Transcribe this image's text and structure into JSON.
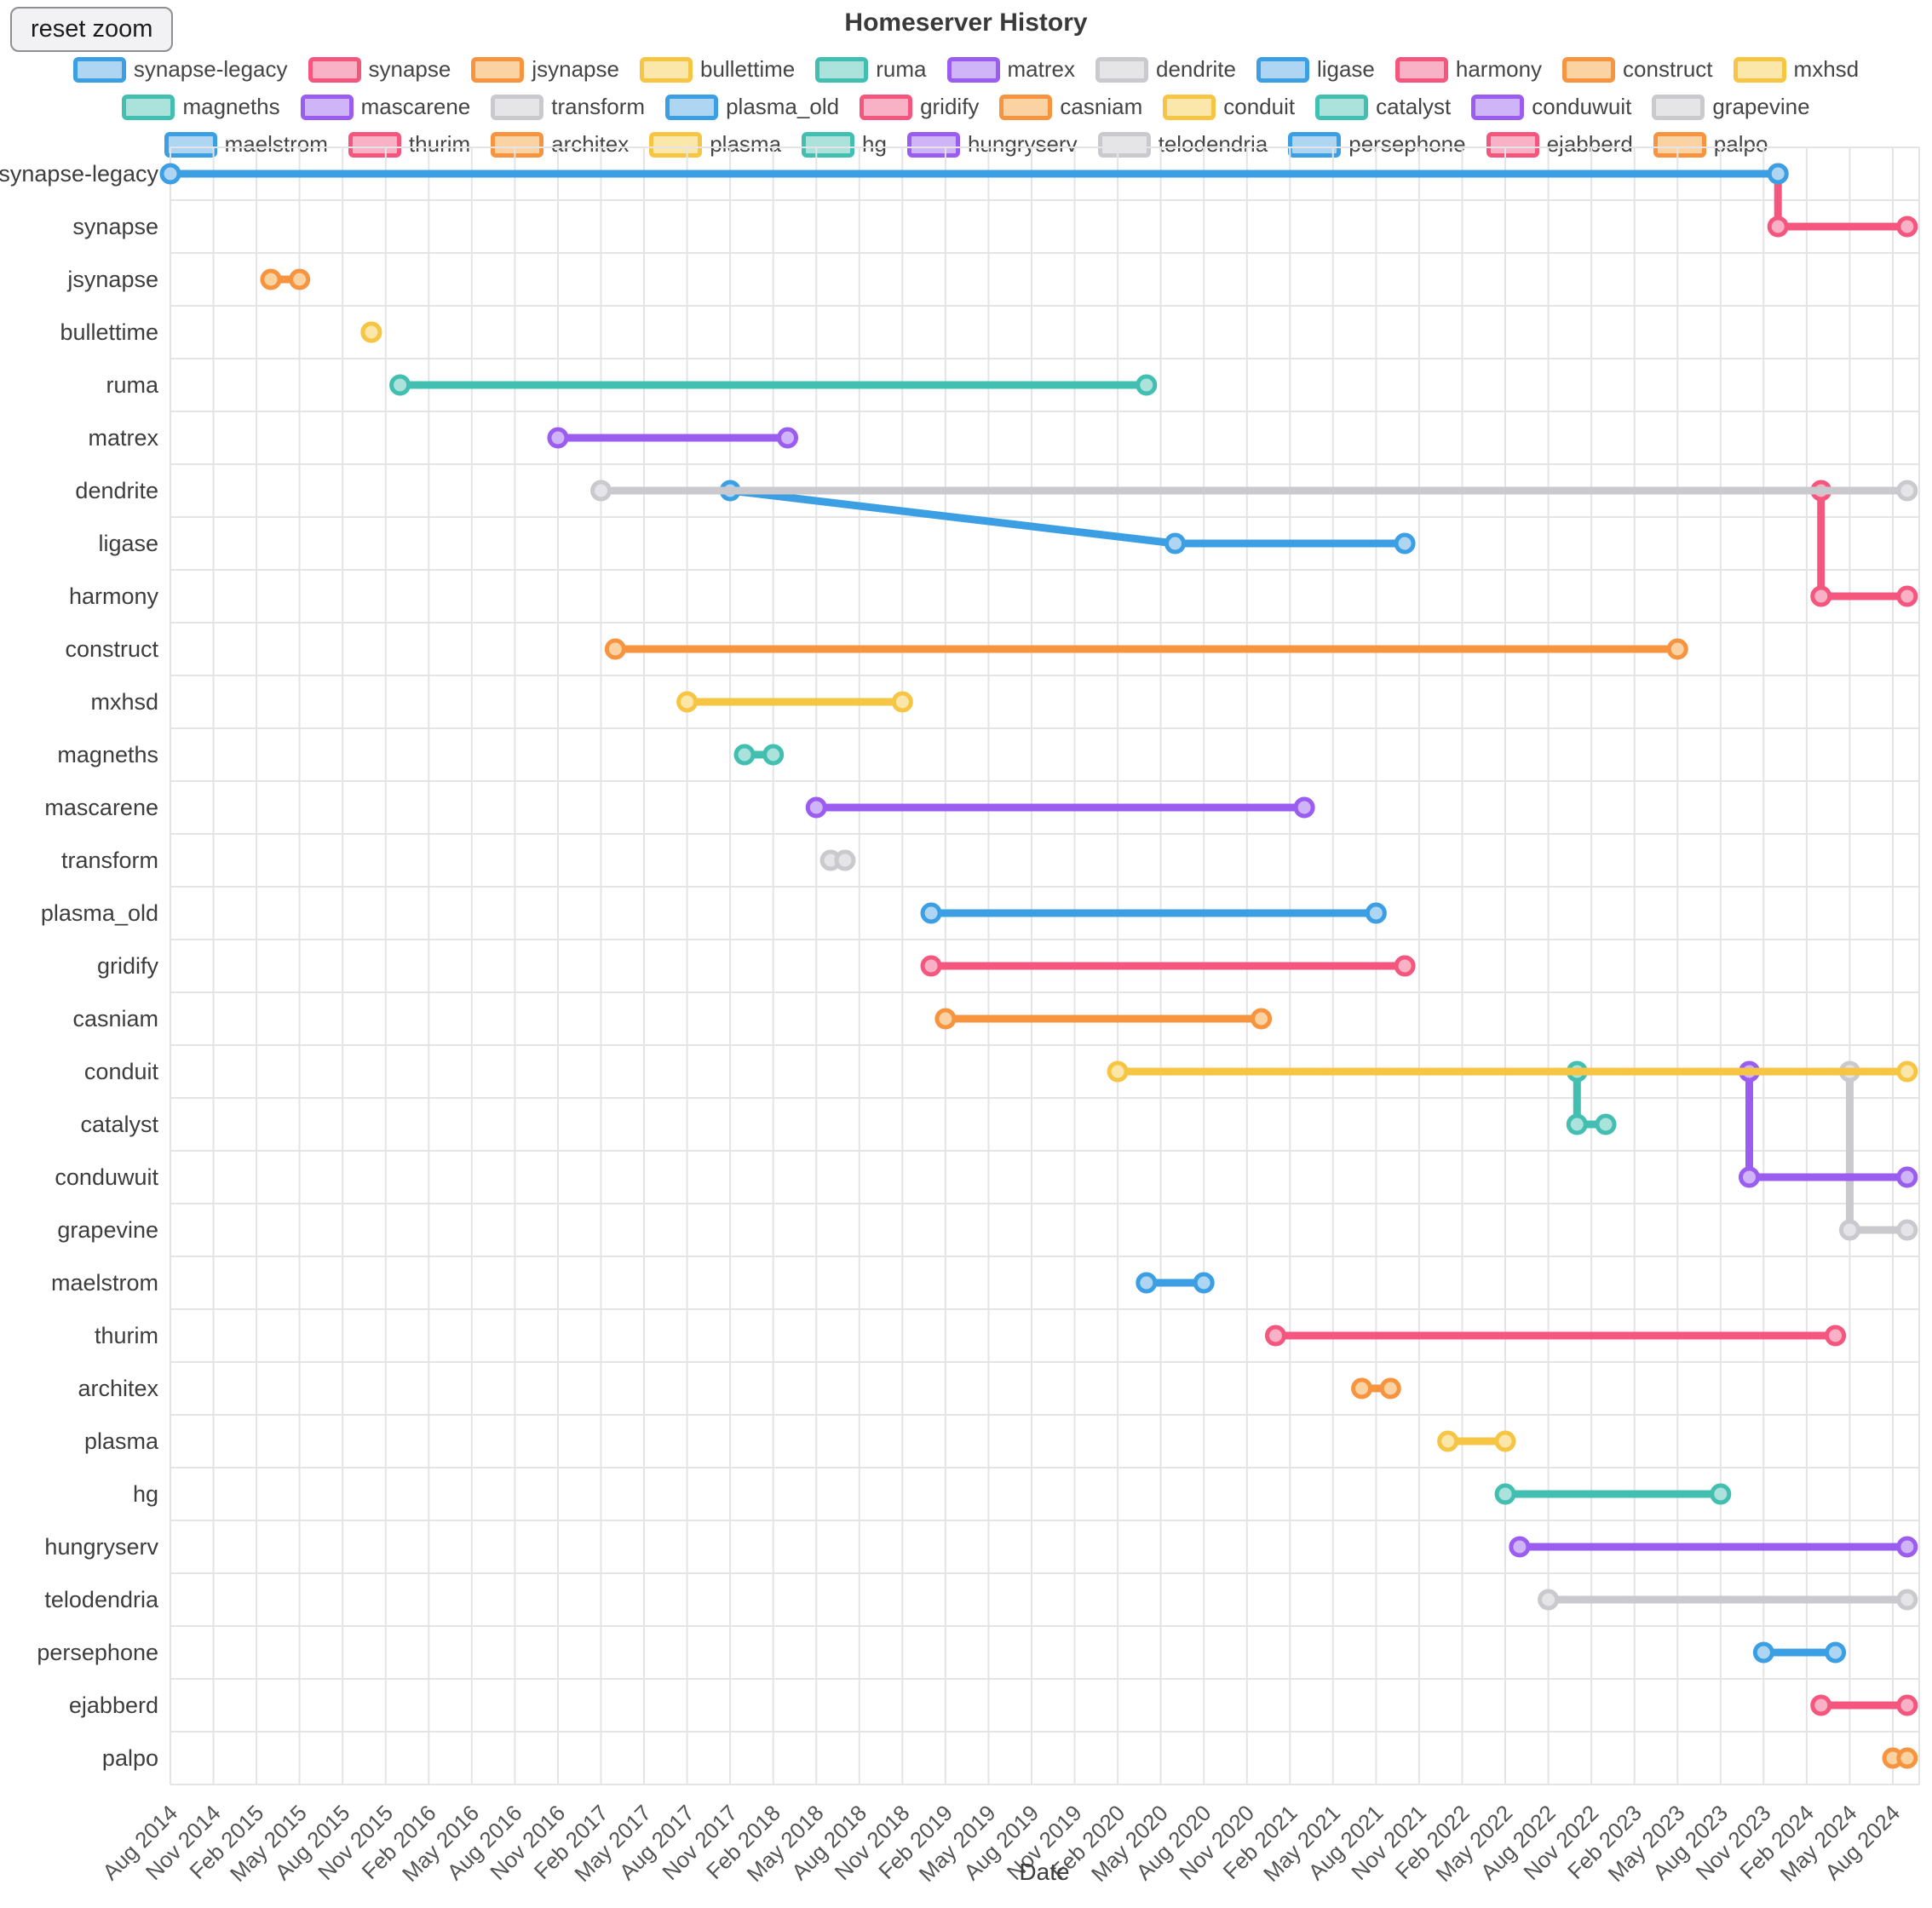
{
  "header": {
    "title": "Homeserver History",
    "reset_button_label": "reset zoom"
  },
  "chart_data": {
    "type": "gantt-timeline",
    "title": "Homeserver History",
    "xlabel": "Date",
    "x_axis": {
      "start": "2014-08",
      "end_tick": "2024-08",
      "tick_interval_months": 3,
      "present_end": "2024-09"
    },
    "x_ticks": [
      "Aug 2014",
      "Nov 2014",
      "Feb 2015",
      "May 2015",
      "Aug 2015",
      "Nov 2015",
      "Feb 2016",
      "May 2016",
      "Aug 2016",
      "Nov 2016",
      "Feb 2017",
      "May 2017",
      "Aug 2017",
      "Nov 2017",
      "Feb 2018",
      "May 2018",
      "Aug 2018",
      "Nov 2018",
      "Feb 2019",
      "May 2019",
      "Aug 2019",
      "Nov 2019",
      "Feb 2020",
      "May 2020",
      "Aug 2020",
      "Nov 2020",
      "Feb 2021",
      "May 2021",
      "Aug 2021",
      "Nov 2021",
      "Feb 2022",
      "May 2022",
      "Aug 2022",
      "Nov 2022",
      "Feb 2023",
      "May 2023",
      "Aug 2023",
      "Nov 2023",
      "Feb 2024",
      "May 2024",
      "Aug 2024"
    ],
    "palette": {
      "blue": {
        "main": "#3d9fe3",
        "light": "#aed6f2"
      },
      "pink": {
        "main": "#f4567e",
        "light": "#f9b1c5"
      },
      "orange": {
        "main": "#f79440",
        "light": "#fbd2a2"
      },
      "yellow": {
        "main": "#f6c544",
        "light": "#fbe7a9"
      },
      "teal": {
        "main": "#43bfb2",
        "light": "#abe2dc"
      },
      "purple": {
        "main": "#9b5df0",
        "light": "#cfb5f8"
      },
      "gray": {
        "main": "#c9c9ce",
        "light": "#e5e5e8"
      }
    },
    "grid_color": "#e4e4e7",
    "series": [
      {
        "name": "synapse-legacy",
        "color": "blue",
        "start": "2014-08",
        "end": "2023-12"
      },
      {
        "name": "synapse",
        "color": "pink",
        "start": "2023-12",
        "end": "2024-09",
        "fork_from": "synapse-legacy",
        "fork_at": "2023-12",
        "fork_style": "vertical"
      },
      {
        "name": "jsynapse",
        "color": "orange",
        "start": "2015-03",
        "end": "2015-05"
      },
      {
        "name": "bullettime",
        "color": "yellow",
        "start": "2015-10",
        "end": "2015-10"
      },
      {
        "name": "ruma",
        "color": "teal",
        "start": "2015-12",
        "end": "2020-04"
      },
      {
        "name": "matrex",
        "color": "purple",
        "start": "2016-11",
        "end": "2018-03"
      },
      {
        "name": "dendrite",
        "color": "gray",
        "start": "2017-02",
        "end": "2024-09"
      },
      {
        "name": "ligase",
        "color": "blue",
        "start": "2020-06",
        "end": "2021-10",
        "fork_from": "dendrite",
        "fork_at": "2017-11",
        "fork_style": "diagonal"
      },
      {
        "name": "harmony",
        "color": "pink",
        "start": "2024-03",
        "end": "2024-09",
        "fork_from": "dendrite",
        "fork_at": "2024-03",
        "fork_style": "vertical"
      },
      {
        "name": "construct",
        "color": "orange",
        "start": "2017-03",
        "end": "2023-05"
      },
      {
        "name": "mxhsd",
        "color": "yellow",
        "start": "2017-08",
        "end": "2018-11"
      },
      {
        "name": "magneths",
        "color": "teal",
        "start": "2017-12",
        "end": "2018-02"
      },
      {
        "name": "mascarene",
        "color": "purple",
        "start": "2018-05",
        "end": "2021-03"
      },
      {
        "name": "transform",
        "color": "gray",
        "start": "2018-06",
        "end": "2018-07"
      },
      {
        "name": "plasma_old",
        "color": "blue",
        "start": "2019-01",
        "end": "2021-08"
      },
      {
        "name": "gridify",
        "color": "pink",
        "start": "2019-01",
        "end": "2021-10"
      },
      {
        "name": "casniam",
        "color": "orange",
        "start": "2019-02",
        "end": "2020-12"
      },
      {
        "name": "conduit",
        "color": "yellow",
        "start": "2020-02",
        "end": "2024-09"
      },
      {
        "name": "catalyst",
        "color": "teal",
        "start": "2022-10",
        "end": "2022-12",
        "fork_from": "conduit",
        "fork_at": "2022-10",
        "fork_style": "vertical"
      },
      {
        "name": "conduwuit",
        "color": "purple",
        "start": "2023-10",
        "end": "2024-09",
        "fork_from": "conduit",
        "fork_at": "2023-10",
        "fork_style": "vertical"
      },
      {
        "name": "grapevine",
        "color": "gray",
        "start": "2024-05",
        "end": "2024-09",
        "fork_from": "conduit",
        "fork_at": "2024-05",
        "fork_style": "vertical"
      },
      {
        "name": "maelstrom",
        "color": "blue",
        "start": "2020-04",
        "end": "2020-08"
      },
      {
        "name": "thurim",
        "color": "pink",
        "start": "2021-01",
        "end": "2024-04"
      },
      {
        "name": "architex",
        "color": "orange",
        "start": "2021-07",
        "end": "2021-09"
      },
      {
        "name": "plasma",
        "color": "yellow",
        "start": "2022-01",
        "end": "2022-05"
      },
      {
        "name": "hg",
        "color": "teal",
        "start": "2022-05",
        "end": "2023-08"
      },
      {
        "name": "hungryserv",
        "color": "purple",
        "start": "2022-06",
        "end": "2024-09"
      },
      {
        "name": "telodendria",
        "color": "gray",
        "start": "2022-08",
        "end": "2024-09"
      },
      {
        "name": "persephone",
        "color": "blue",
        "start": "2023-11",
        "end": "2024-04"
      },
      {
        "name": "ejabberd",
        "color": "pink",
        "start": "2024-03",
        "end": "2024-09"
      },
      {
        "name": "palpo",
        "color": "orange",
        "start": "2024-08",
        "end": "2024-09"
      }
    ]
  }
}
